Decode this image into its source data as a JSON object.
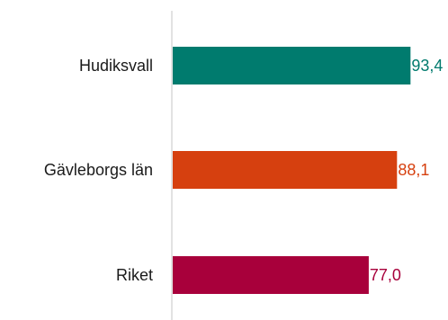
{
  "chart_data": {
    "type": "bar",
    "orientation": "horizontal",
    "categories": [
      "Hudiksvall",
      "Gävleborgs län",
      "Riket"
    ],
    "values": [
      93.4,
      88.1,
      77.0
    ],
    "value_labels": [
      "93,4",
      "88,1",
      "77,0"
    ],
    "colors": [
      "#007b6e",
      "#d6400f",
      "#a8003b"
    ],
    "xlim": [
      0,
      100
    ],
    "grid": false,
    "legend": "none"
  }
}
